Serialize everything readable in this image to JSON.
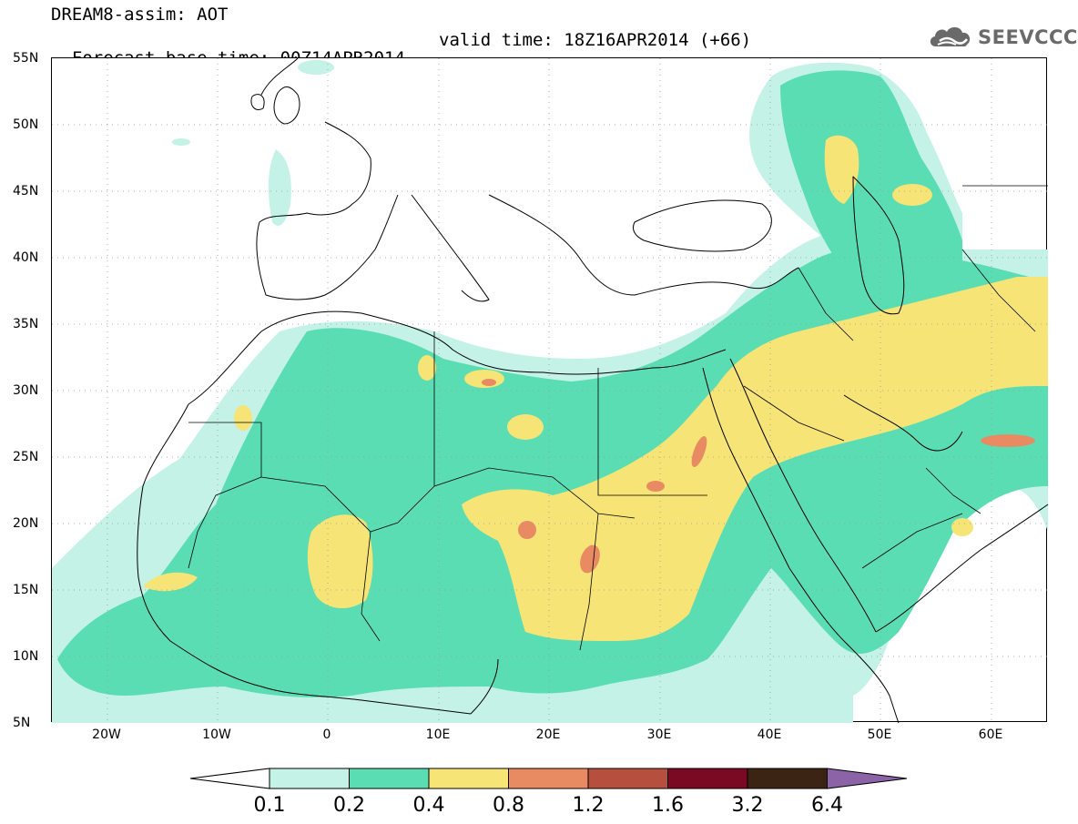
{
  "header": {
    "line1": "DREAM8-assim: AOT",
    "base_time": "Forecast base time: 00Z14APR2014",
    "valid_time": "valid time: 18Z16APR2014 (+66)"
  },
  "logo": {
    "text": "SEEVCCC",
    "icon": "cloud-icon"
  },
  "map": {
    "projection": "cylindrical",
    "lon_range": [
      -25,
      65
    ],
    "lat_range": [
      5,
      55
    ],
    "lat_labels": [
      "55N",
      "50N",
      "45N",
      "40N",
      "35N",
      "30N",
      "25N",
      "20N",
      "15N",
      "10N",
      "5N"
    ],
    "lon_labels": [
      "20W",
      "10W",
      "0",
      "10E",
      "20E",
      "30E",
      "40E",
      "50E",
      "60E"
    ],
    "gridlines": "dotted",
    "variable": "AOT"
  },
  "colorbar": {
    "levels": [
      "0.1",
      "0.2",
      "0.4",
      "0.8",
      "1.2",
      "1.6",
      "3.2",
      "6.4"
    ],
    "colors": [
      "#ffffff",
      "#c4f2e6",
      "#5bddb3",
      "#f6e477",
      "#e88b63",
      "#b64f3e",
      "#7a0a24",
      "#3c2414",
      "#8b63a6"
    ]
  }
}
